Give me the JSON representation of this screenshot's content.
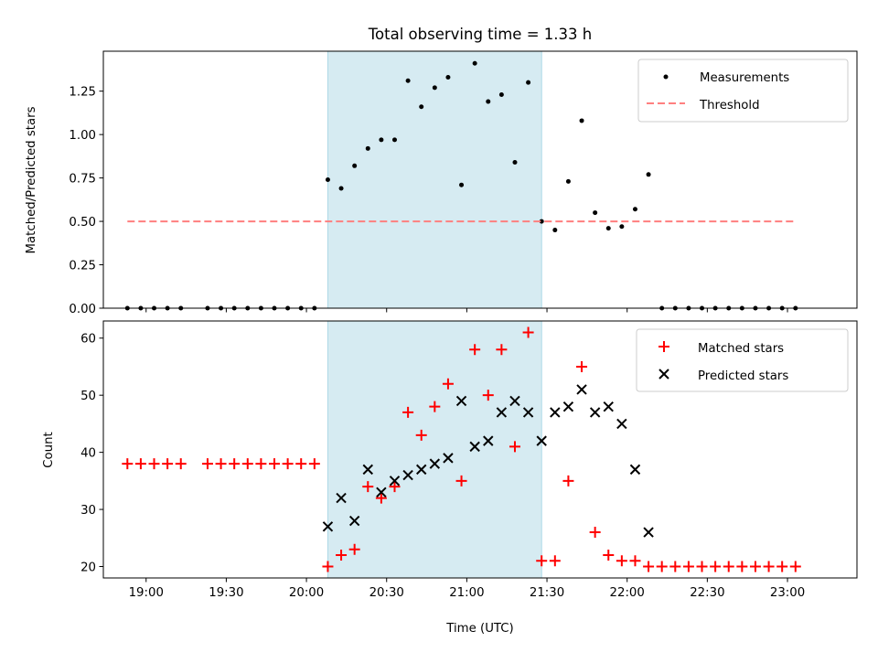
{
  "chart_data": [
    {
      "type": "scatter",
      "title": "Total observing time = 1.33 h",
      "xlabel": "",
      "ylabel": "Matched/Predicted stars",
      "xlim": [
        "18:44",
        "23:26"
      ],
      "ylim": [
        0,
        1.48
      ],
      "yticks": [
        0.0,
        0.25,
        0.5,
        0.75,
        1.0,
        1.25
      ],
      "ytick_labels": [
        "0.00",
        "0.25",
        "0.50",
        "0.75",
        "1.00",
        "1.25"
      ],
      "xticks": [
        "19:00",
        "19:30",
        "20:00",
        "20:30",
        "21:00",
        "21:30",
        "22:00",
        "22:30",
        "23:00"
      ],
      "shaded_region": {
        "start": "20:08",
        "end": "21:28",
        "color": "#add8e6"
      },
      "legend": {
        "location": "upper right",
        "entries": [
          "Measurements",
          "Threshold"
        ]
      },
      "series": [
        {
          "name": "Measurements",
          "marker": "dot",
          "color": "#000000",
          "x": [
            "18:53",
            "18:58",
            "19:03",
            "19:08",
            "19:13",
            "19:23",
            "19:28",
            "19:33",
            "19:38",
            "19:43",
            "19:48",
            "19:53",
            "19:58",
            "20:03",
            "20:08",
            "20:13",
            "20:18",
            "20:23",
            "20:28",
            "20:33",
            "20:38",
            "20:43",
            "20:48",
            "20:53",
            "20:58",
            "21:03",
            "21:08",
            "21:13",
            "21:18",
            "21:23",
            "21:28",
            "21:33",
            "21:38",
            "21:43",
            "21:48",
            "21:53",
            "21:58",
            "22:03",
            "22:08",
            "22:13",
            "22:18",
            "22:23",
            "22:28",
            "22:33",
            "22:38",
            "22:43",
            "22:48",
            "22:53",
            "22:58",
            "23:03"
          ],
          "y": [
            0,
            0,
            0,
            0,
            0,
            0,
            0,
            0,
            0,
            0,
            0,
            0,
            0,
            0,
            0.74,
            0.69,
            0.82,
            0.92,
            0.97,
            0.97,
            1.31,
            1.16,
            1.27,
            1.33,
            0.71,
            1.41,
            1.19,
            1.23,
            0.84,
            1.3,
            0.5,
            0.45,
            0.73,
            1.08,
            0.55,
            0.46,
            0.47,
            0.57,
            0.77,
            0,
            0,
            0,
            0,
            0,
            0,
            0,
            0,
            0,
            0,
            0
          ]
        },
        {
          "name": "Threshold",
          "marker": "dashed-line",
          "color": "#ff7f7f",
          "x": [
            "18:53",
            "23:03"
          ],
          "y": [
            0.5,
            0.5
          ]
        }
      ]
    },
    {
      "type": "scatter",
      "title": "",
      "xlabel": "Time (UTC)",
      "ylabel": "Count",
      "xlim": [
        "18:44",
        "23:26"
      ],
      "ylim": [
        18,
        63
      ],
      "yticks": [
        20,
        30,
        40,
        50,
        60
      ],
      "ytick_labels": [
        "20",
        "30",
        "40",
        "50",
        "60"
      ],
      "xticks": [
        "19:00",
        "19:30",
        "20:00",
        "20:30",
        "21:00",
        "21:30",
        "22:00",
        "22:30",
        "23:00"
      ],
      "shaded_region": {
        "start": "20:08",
        "end": "21:28",
        "color": "#add8e6"
      },
      "legend": {
        "location": "upper right",
        "entries": [
          "Matched stars",
          "Predicted stars"
        ]
      },
      "series": [
        {
          "name": "Matched stars",
          "marker": "plus",
          "color": "#ff0000",
          "x": [
            "18:53",
            "18:58",
            "19:03",
            "19:08",
            "19:13",
            "19:23",
            "19:28",
            "19:33",
            "19:38",
            "19:43",
            "19:48",
            "19:53",
            "19:58",
            "20:03",
            "20:08",
            "20:13",
            "20:18",
            "20:23",
            "20:28",
            "20:33",
            "20:38",
            "20:43",
            "20:48",
            "20:53",
            "20:58",
            "21:03",
            "21:08",
            "21:13",
            "21:18",
            "21:23",
            "21:28",
            "21:33",
            "21:38",
            "21:43",
            "21:48",
            "21:53",
            "21:58",
            "22:03",
            "22:08",
            "22:13",
            "22:18",
            "22:23",
            "22:28",
            "22:33",
            "22:38",
            "22:43",
            "22:48",
            "22:53",
            "22:58",
            "23:03"
          ],
          "y": [
            38,
            38,
            38,
            38,
            38,
            38,
            38,
            38,
            38,
            38,
            38,
            38,
            38,
            38,
            20,
            22,
            23,
            34,
            32,
            34,
            47,
            43,
            48,
            52,
            35,
            58,
            50,
            58,
            41,
            61,
            21,
            21,
            35,
            55,
            26,
            22,
            21,
            21,
            20,
            20,
            20,
            20,
            20,
            20,
            20,
            20,
            20,
            20,
            20,
            20
          ]
        },
        {
          "name": "Predicted stars",
          "marker": "x",
          "color": "#000000",
          "x": [
            "20:08",
            "20:13",
            "20:18",
            "20:23",
            "20:28",
            "20:33",
            "20:38",
            "20:43",
            "20:48",
            "20:53",
            "20:58",
            "21:03",
            "21:08",
            "21:13",
            "21:18",
            "21:23",
            "21:28",
            "21:33",
            "21:38",
            "21:43",
            "21:48",
            "21:53",
            "21:58",
            "22:03",
            "22:08"
          ],
          "y": [
            27,
            32,
            28,
            37,
            33,
            35,
            36,
            37,
            38,
            39,
            49,
            41,
            42,
            47,
            49,
            47,
            42,
            47,
            48,
            51,
            47,
            48,
            45,
            37,
            26
          ]
        }
      ]
    }
  ]
}
